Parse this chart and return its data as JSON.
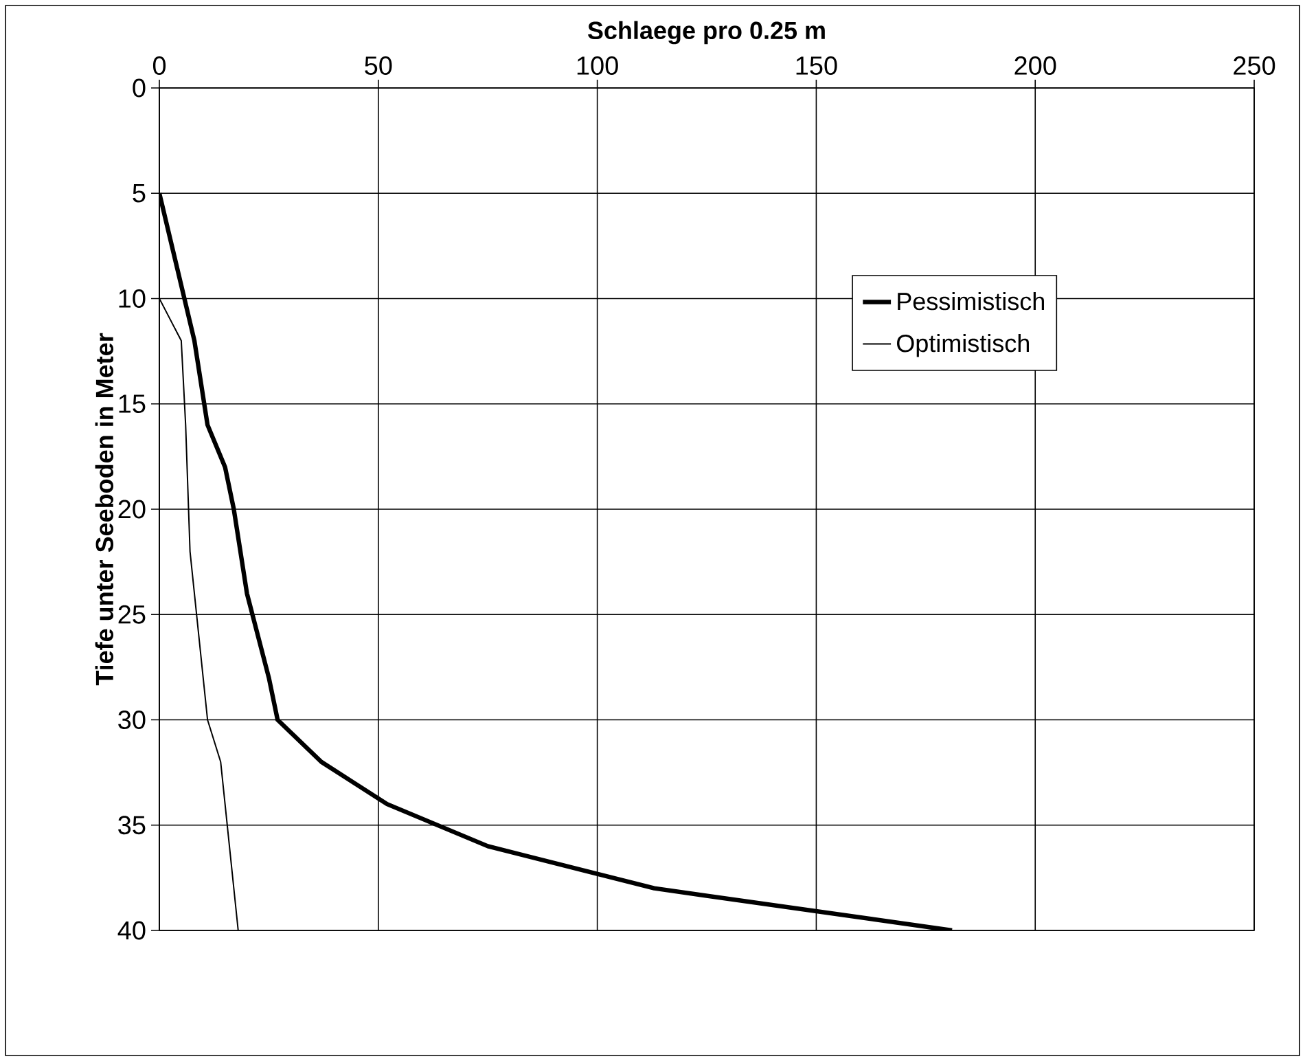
{
  "chart_data": {
    "type": "line",
    "xlabel": "Schlaege pro 0.25 m",
    "ylabel": "Tiefe unter Seeboden in Meter",
    "xlim": [
      0,
      250
    ],
    "xticks": [
      0,
      50,
      100,
      150,
      200,
      250
    ],
    "ylim": [
      40,
      0
    ],
    "yticks": [
      0,
      5,
      10,
      15,
      20,
      25,
      30,
      35,
      40
    ],
    "grid": true,
    "legend": "top right",
    "marker": "none",
    "line_style": "solid",
    "series": [
      {
        "name": "Pessimistisch",
        "color": "#000000",
        "x": [
          0,
          8,
          11,
          15,
          17,
          20,
          25,
          27,
          37,
          52,
          75,
          113,
          181
        ],
        "values": [
          5,
          12,
          16,
          18,
          20,
          24,
          28,
          30,
          32,
          34,
          36,
          38,
          40
        ]
      },
      {
        "name": "Optimistisch",
        "color": "#000000",
        "x": [
          0,
          0,
          5,
          6,
          7,
          9,
          11,
          14,
          18
        ],
        "values": [
          5,
          10,
          12,
          16,
          22,
          26,
          30,
          32,
          40
        ]
      }
    ]
  }
}
